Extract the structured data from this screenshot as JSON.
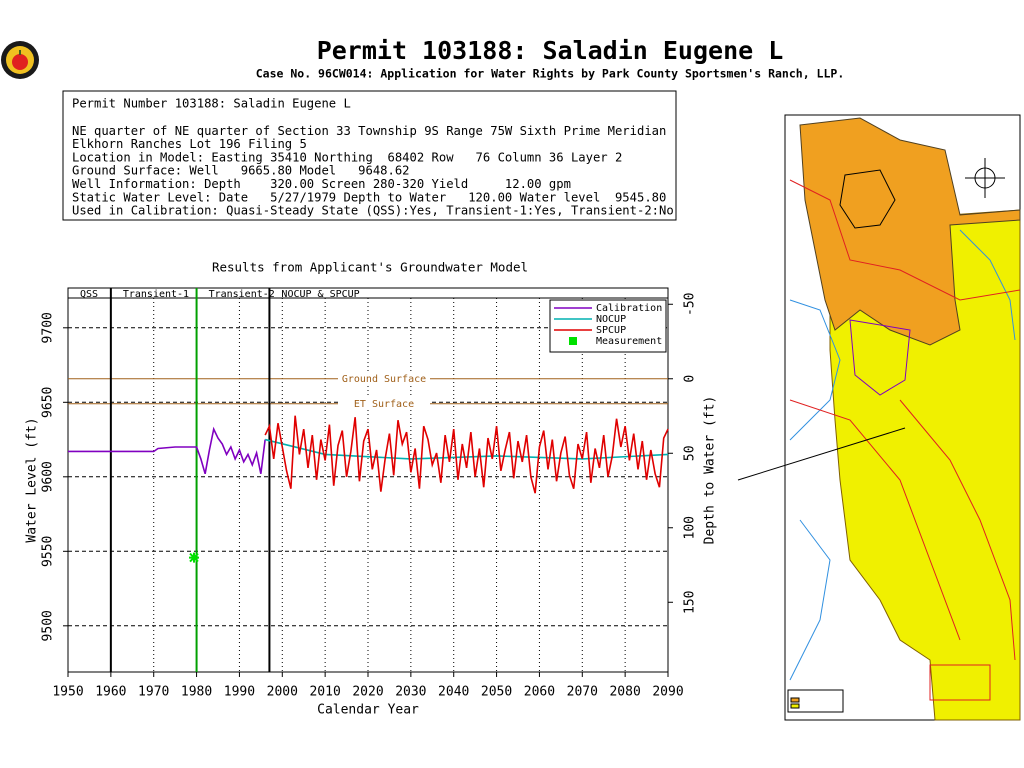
{
  "header": {
    "title": "Permit  103188:   Saladin Eugene L",
    "subtitle": "Case No. 96CW014: Application for Water Rights by Park County Sportsmen's Ranch, LLP."
  },
  "info": {
    "lines": [
      "Permit Number 103188: Saladin Eugene L",
      "NE quarter of NE quarter of Section 33 Township 9S Range 75W Sixth Prime Meridian",
      "Elkhorn Ranches Lot 196 Filing 5",
      "Location in Model: Easting 35410 Northing  68402 Row   76 Column 36 Layer 2",
      "Ground Surface: Well   9665.80 Model   9648.62",
      "Well Information: Depth    320.00 Screen 280-320 Yield     12.00 gpm",
      "Static Water Level: Date   5/27/1979 Depth to Water   120.00 Water level  9545.80",
      "Used in Calibration: Quasi-Steady State (QSS):Yes, Transient-1:Yes, Transient-2:No"
    ]
  },
  "chart_data": {
    "type": "line",
    "title": "Results from Applicant's Groundwater Model",
    "x_label": "Calendar Year",
    "y_label": "Water Level (ft)",
    "y2_label": "Depth to Water (ft)",
    "xlim": [
      1950,
      2090
    ],
    "xticks": [
      1950,
      1960,
      1970,
      1980,
      1990,
      2000,
      2010,
      2020,
      2030,
      2040,
      2050,
      2060,
      2070,
      2080,
      2090
    ],
    "ylim": [
      9469,
      9720
    ],
    "yticks": [
      9500,
      9550,
      9600,
      9650,
      9700
    ],
    "y2lim": [
      196.8,
      -54.2
    ],
    "y2ticks": [
      150,
      100,
      50,
      0,
      -50
    ],
    "grid": true,
    "legend": "upper right",
    "phases": [
      {
        "label": "QSS",
        "end": 1960,
        "color": "#000000"
      },
      {
        "label": "Transient-1",
        "end": 1980,
        "color": "#00a000"
      },
      {
        "label": "Transient-2",
        "end": 1997,
        "color": "#000000"
      },
      {
        "label": "NOCUP & SPCUP"
      }
    ],
    "reference_lines": [
      {
        "label": "Ground Surface",
        "value": 9665.8,
        "color": "#a0601a"
      },
      {
        "label": "ET Surface",
        "value": 9649,
        "color": "#a0601a"
      }
    ],
    "series": [
      {
        "name": "Calibration",
        "color": "#8000c0",
        "style": "line",
        "x": [
          1950,
          1970,
          1971,
          1975,
          1979,
          1980,
          1981,
          1982,
          1983,
          1984,
          1985,
          1986,
          1987,
          1988,
          1989,
          1990,
          1991,
          1992,
          1993,
          1994,
          1995,
          1996
        ],
        "values": [
          9617,
          9617,
          9619,
          9620,
          9620,
          9620,
          9612,
          9602,
          9618,
          9632,
          9626,
          9622,
          9615,
          9620,
          9612,
          9618,
          9610,
          9615,
          9608,
          9616,
          9602,
          9625
        ]
      },
      {
        "name": "NOCUP",
        "color": "#00b0b0",
        "style": "line",
        "x": [
          1996,
          2010,
          2030,
          2050,
          2070,
          2090
        ],
        "values": [
          9625,
          9615,
          9612,
          9614,
          9612,
          9615
        ]
      },
      {
        "name": "SPCUP",
        "color": "#e00000",
        "style": "line",
        "x": [
          1996,
          1997,
          1998,
          1999,
          2000,
          2001,
          2002,
          2003,
          2004,
          2005,
          2006,
          2007,
          2008,
          2009,
          2010,
          2011,
          2012,
          2013,
          2014,
          2015,
          2016,
          2017,
          2018,
          2019,
          2020,
          2021,
          2022,
          2023,
          2024,
          2025,
          2026,
          2027,
          2028,
          2029,
          2030,
          2031,
          2032,
          2033,
          2034,
          2035,
          2036,
          2037,
          2038,
          2039,
          2040,
          2041,
          2042,
          2043,
          2044,
          2045,
          2046,
          2047,
          2048,
          2049,
          2050,
          2051,
          2052,
          2053,
          2054,
          2055,
          2056,
          2057,
          2058,
          2059,
          2060,
          2061,
          2062,
          2063,
          2064,
          2065,
          2066,
          2067,
          2068,
          2069,
          2070,
          2071,
          2072,
          2073,
          2074,
          2075,
          2076,
          2077,
          2078,
          2079,
          2080,
          2081,
          2082,
          2083,
          2084,
          2085,
          2086,
          2087,
          2088,
          2089,
          2090
        ],
        "values": [
          9628,
          9634,
          9612,
          9636,
          9620,
          9604,
          9592,
          9641,
          9615,
          9632,
          9606,
          9628,
          9598,
          9625,
          9611,
          9635,
          9594,
          9621,
          9631,
          9600,
          9617,
          9640,
          9597,
          9624,
          9632,
          9605,
          9618,
          9590,
          9612,
          9629,
          9601,
          9638,
          9622,
          9630,
          9603,
          9619,
          9592,
          9634,
          9625,
          9608,
          9616,
          9596,
          9628,
          9610,
          9632,
          9598,
          9622,
          9606,
          9630,
          9600,
          9619,
          9593,
          9626,
          9612,
          9634,
          9604,
          9618,
          9630,
          9599,
          9624,
          9610,
          9628,
          9600,
          9589,
          9620,
          9631,
          9605,
          9625,
          9597,
          9616,
          9627,
          9601,
          9592,
          9622,
          9612,
          9630,
          9596,
          9619,
          9606,
          9628,
          9600,
          9614,
          9639,
          9620,
          9634,
          9611,
          9629,
          9605,
          9624,
          9598,
          9618,
          9602,
          9593,
          9626,
          9632
        ]
      },
      {
        "name": "Measurement",
        "color": "#00e000",
        "style": "marker",
        "x": [
          1979.4
        ],
        "values": [
          9545.8
        ]
      }
    ]
  }
}
